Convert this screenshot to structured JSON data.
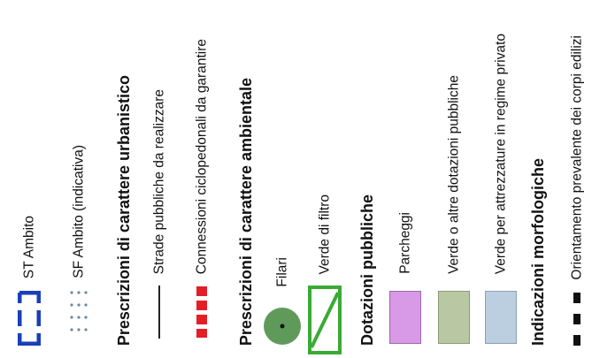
{
  "legend": {
    "st_ambito": "ST Ambito",
    "sf_ambito": "SF Ambito (indicativa)",
    "prescrizioni_urbanistico": "Prescrizioni di carattere urbanistico",
    "strade": "Strade pubbliche da realizzare",
    "connessioni": "Connessioni ciclopedonali da garantire",
    "prescrizioni_ambientale": "Prescrizioni di carattere ambientale",
    "filari": "Filari",
    "verde_filtro": "Verde di filtro",
    "dotazioni": "Dotazioni pubbliche",
    "parcheggi": "Parcheggi",
    "verde_dotazioni": "Verde o altre dotazioni pubbliche",
    "verde_privato": "Verde per attrezzature in regime privato",
    "indicazioni": "Indicazioni morfologiche",
    "orientamento": "Orientamento prevalente dei corpi edilizi"
  },
  "colors": {
    "st_blue": "#1a3fb8",
    "sf_dots": "#6a8aa6",
    "red": "#e41e26",
    "filari_green": "#5f9a5a",
    "filtro_green": "#3aaa35",
    "parcheggi": "#d899e6",
    "verde_dot": "#b9c8a2",
    "verde_priv": "#bccfe0"
  }
}
